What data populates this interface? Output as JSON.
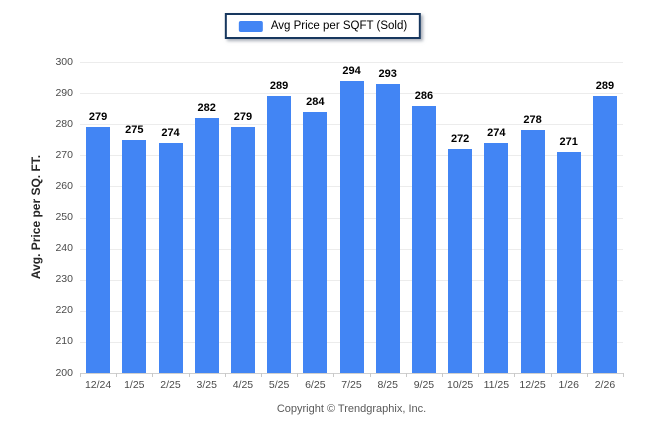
{
  "legend": {
    "label": "Avg Price per SQFT (Sold)",
    "swatch_color": "#4285f4"
  },
  "footer": {
    "copyright": "Copyright © Trendgraphix, Inc."
  },
  "chart_data": {
    "type": "bar",
    "title": "",
    "xlabel": "",
    "ylabel": "Avg. Price per SQ. FT.",
    "ylim": [
      200,
      300
    ],
    "ytick_step": 10,
    "grid": true,
    "legend_position": "top-center",
    "bar_color": "#4285f4",
    "gridline_color": "#ececec",
    "categories": [
      "12/24",
      "1/25",
      "2/25",
      "3/25",
      "4/25",
      "5/25",
      "6/25",
      "7/25",
      "8/25",
      "9/25",
      "10/25",
      "11/25",
      "12/25",
      "1/26",
      "2/26"
    ],
    "series": [
      {
        "name": "Avg Price per SQFT (Sold)",
        "values": [
          279,
          275,
          274,
          282,
          279,
          289,
          284,
          294,
          293,
          286,
          272,
          274,
          278,
          271,
          289
        ]
      }
    ]
  }
}
